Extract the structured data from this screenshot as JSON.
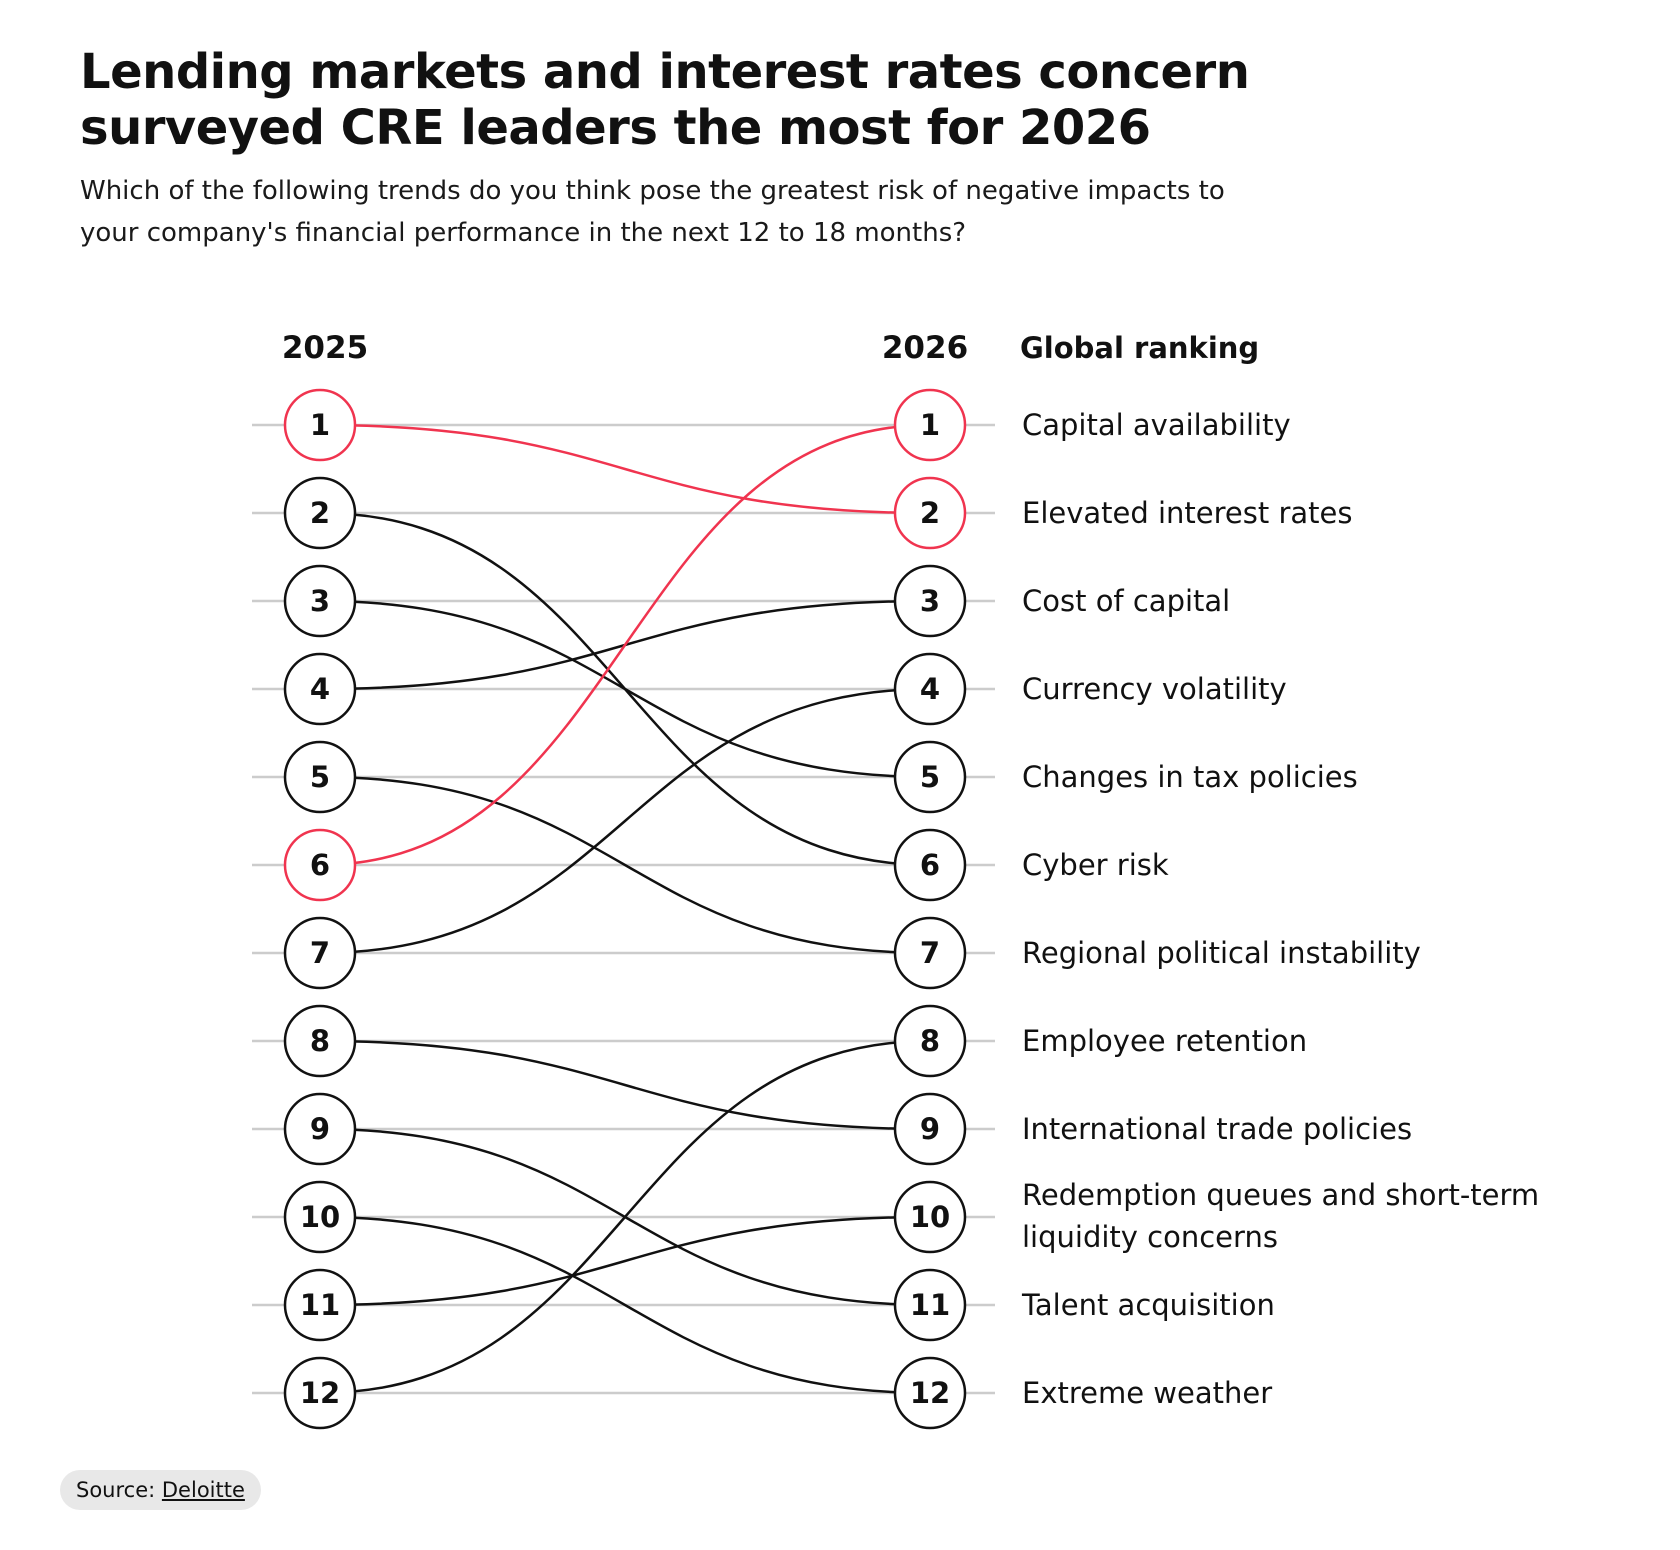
{
  "title": "Lending markets and interest rates concern surveyed CRE leaders the most for 2026",
  "subtitle": "Which of the following trends do you think pose the greatest risk of negative impacts to your company's financial performance in the next 12 to 18 months?",
  "source": {
    "label": "Source:",
    "link_text": "Deloitte"
  },
  "colors": {
    "highlight": "#f0344f",
    "line": "#111111",
    "gridline": "#cccccc",
    "background": "#ffffff"
  },
  "chart_data": {
    "type": "slope",
    "left_header": "2025",
    "right_header": "2026",
    "labels_header": "Global ranking",
    "ranks": [
      1,
      2,
      3,
      4,
      5,
      6,
      7,
      8,
      9,
      10,
      11,
      12
    ],
    "items": [
      {
        "label": "Capital availability",
        "rank_2025": 6,
        "rank_2026": 1,
        "highlight": true
      },
      {
        "label": "Elevated interest rates",
        "rank_2025": 1,
        "rank_2026": 2,
        "highlight": true
      },
      {
        "label": "Cost of capital",
        "rank_2025": 4,
        "rank_2026": 3,
        "highlight": false
      },
      {
        "label": "Currency volatility",
        "rank_2025": 7,
        "rank_2026": 4,
        "highlight": false
      },
      {
        "label": "Changes in tax policies",
        "rank_2025": 3,
        "rank_2026": 5,
        "highlight": false
      },
      {
        "label": "Cyber risk",
        "rank_2025": 2,
        "rank_2026": 6,
        "highlight": false
      },
      {
        "label": "Regional political instability",
        "rank_2025": 5,
        "rank_2026": 7,
        "highlight": false
      },
      {
        "label": "Employee retention",
        "rank_2025": 12,
        "rank_2026": 8,
        "highlight": false
      },
      {
        "label": "International trade policies",
        "rank_2025": 8,
        "rank_2026": 9,
        "highlight": false
      },
      {
        "label": [
          "Redemption queues and short-term",
          "liquidity concerns"
        ],
        "rank_2025": 11,
        "rank_2026": 10,
        "highlight": false
      },
      {
        "label": "Talent acquisition",
        "rank_2025": 9,
        "rank_2026": 11,
        "highlight": false
      },
      {
        "label": "Extreme weather",
        "rank_2025": 10,
        "rank_2026": 12,
        "highlight": false
      }
    ]
  }
}
